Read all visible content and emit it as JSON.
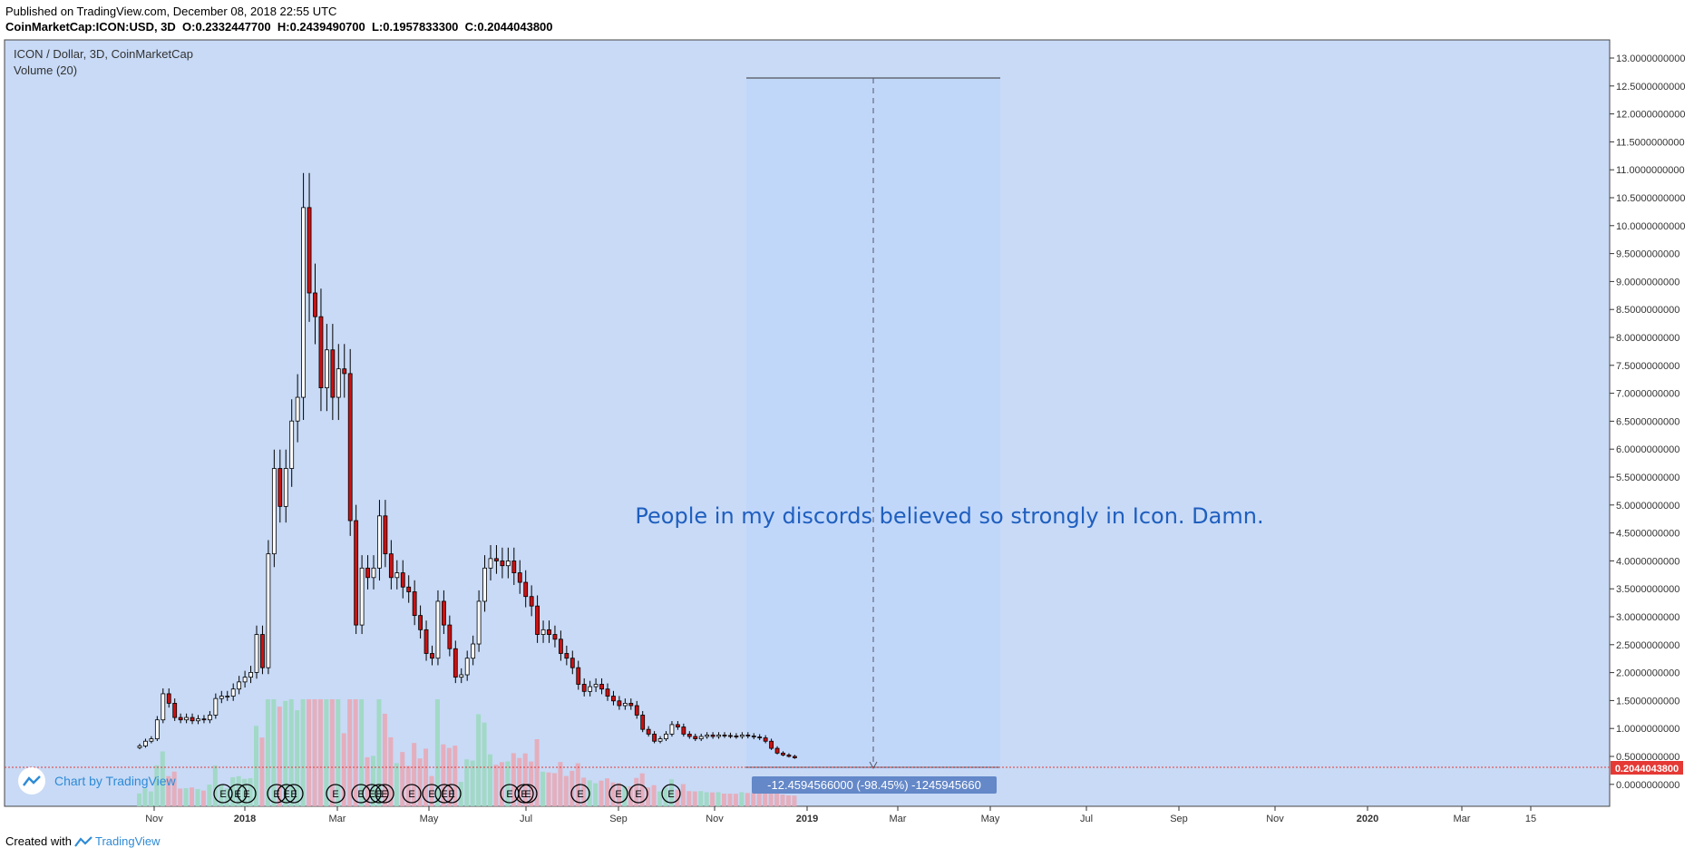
{
  "header": {
    "published": "Published on TradingView.com, December 08, 2018 22:55 UTC",
    "symbol": "CoinMarketCap:ICON:USD, 3D",
    "o_label": "O:",
    "o_value": "0.2332447700",
    "h_label": "H:",
    "h_value": "0.2439490700",
    "l_label": "L:",
    "l_value": "0.1957833300",
    "c_label": "C:",
    "c_value": "0.2044043800"
  },
  "legend": {
    "title": "ICON / Dollar, 3D, CoinMarketCap",
    "volume": "Volume (20)"
  },
  "badge": {
    "label": "Chart by TradingView",
    "icon": "tradingview-logo-icon"
  },
  "footer": {
    "created": "Created with",
    "brand": "TradingView",
    "icon": "tradingview-logo-icon"
  },
  "colors": {
    "background": "#c8daf6",
    "up": "#ffffff",
    "down": "#cc1111",
    "volume_up": "#9ad8bd",
    "volume_down": "#eaa6b3",
    "text_annotation": "#1f5fbf",
    "measure_box": "#bfd6fa",
    "price_line": "#e53935",
    "measure_label_bg": "#6488c8"
  },
  "chart_data": {
    "type": "candlestick",
    "title": "ICON / Dollar, 3D, CoinMarketCap",
    "x_ticks": [
      "Nov",
      "2018",
      "Mar",
      "May",
      "Jul",
      "Sep",
      "Nov",
      "2019",
      "Mar",
      "May",
      "Jul",
      "Sep",
      "Nov",
      "2020",
      "Mar",
      "15"
    ],
    "y_ticks": [
      "13.0000000000",
      "12.5000000000",
      "12.0000000000",
      "11.5000000000",
      "11.0000000000",
      "10.5000000000",
      "10.0000000000",
      "9.5000000000",
      "9.0000000000",
      "8.5000000000",
      "8.0000000000",
      "7.5000000000",
      "7.0000000000",
      "6.5000000000",
      "6.0000000000",
      "5.5000000000",
      "5.0000000000",
      "4.5000000000",
      "4.0000000000",
      "3.5000000000",
      "3.0000000000",
      "2.5000000000",
      "2.0000000000",
      "1.5000000000",
      "1.0000000000",
      "0.5000000000",
      "0.0000000000"
    ],
    "ylim": [
      -0.5,
      13.25
    ],
    "last_price": "0.2044043800",
    "annotation": "People in my discords believed so strongly in Icon. Damn.",
    "measure_label": "-12.4594566000 (-98.45%) -1245945660",
    "event_markers_label": "E",
    "event_marker_count": 22,
    "closes": [
      0.45,
      0.55,
      0.6,
      1.0,
      1.55,
      1.35,
      1.05,
      1.0,
      1.05,
      0.98,
      1.02,
      1.0,
      1.1,
      1.45,
      1.5,
      1.5,
      1.65,
      1.8,
      1.9,
      2.0,
      2.8,
      2.1,
      4.5,
      6.3,
      5.5,
      6.3,
      7.3,
      7.8,
      11.8,
      10.0,
      9.5,
      8.0,
      8.8,
      7.8,
      8.4,
      8.3,
      5.2,
      3.0,
      4.2,
      4.0,
      4.2,
      5.3,
      4.5,
      4.0,
      4.1,
      3.8,
      3.7,
      3.2,
      2.9,
      2.4,
      2.3,
      3.5,
      3.0,
      2.5,
      1.9,
      1.95,
      2.3,
      2.6,
      3.5,
      4.2,
      4.4,
      4.35,
      4.25,
      4.35,
      4.1,
      3.9,
      3.6,
      3.4,
      2.8,
      2.9,
      2.8,
      2.7,
      2.4,
      2.3,
      2.1,
      1.75,
      1.6,
      1.7,
      1.75,
      1.65,
      1.5,
      1.4,
      1.3,
      1.35,
      1.3,
      1.1,
      0.8,
      0.7,
      0.55,
      0.6,
      0.7,
      0.9,
      0.85,
      0.7,
      0.65,
      0.6,
      0.65,
      0.68,
      0.65,
      0.68,
      0.67,
      0.66,
      0.65,
      0.68,
      0.66,
      0.64,
      0.62,
      0.55,
      0.4,
      0.3,
      0.26,
      0.23,
      0.2
    ]
  }
}
